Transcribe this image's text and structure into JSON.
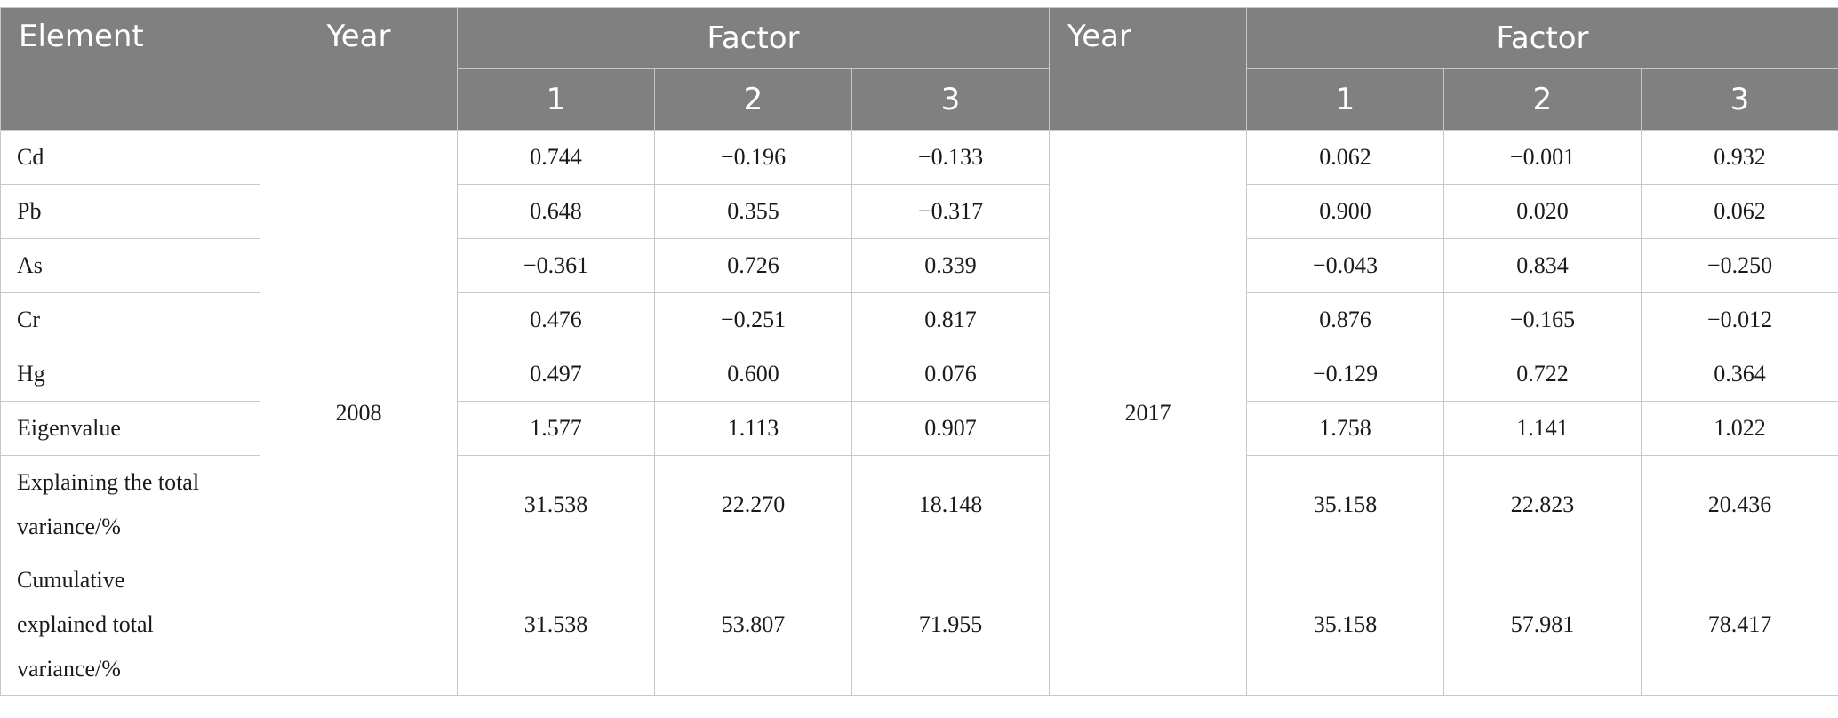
{
  "header": {
    "element": "Element",
    "year": "Year",
    "factor": "Factor",
    "factor_numbers": [
      "1",
      "2",
      "3"
    ]
  },
  "years": [
    "2008",
    "2017"
  ],
  "rows": [
    {
      "label": "Cd",
      "y2008": [
        "0.744",
        "−0.196",
        "−0.133"
      ],
      "y2017": [
        "0.062",
        "−0.001",
        "0.932"
      ]
    },
    {
      "label": "Pb",
      "y2008": [
        "0.648",
        "0.355",
        "−0.317"
      ],
      "y2017": [
        "0.900",
        "0.020",
        "0.062"
      ]
    },
    {
      "label": "As",
      "y2008": [
        "−0.361",
        "0.726",
        "0.339"
      ],
      "y2017": [
        "−0.043",
        "0.834",
        "−0.250"
      ]
    },
    {
      "label": "Cr",
      "y2008": [
        "0.476",
        "−0.251",
        "0.817"
      ],
      "y2017": [
        "0.876",
        "−0.165",
        "−0.012"
      ]
    },
    {
      "label": "Hg",
      "y2008": [
        "0.497",
        "0.600",
        "0.076"
      ],
      "y2017": [
        "−0.129",
        "0.722",
        "0.364"
      ]
    },
    {
      "label": "Eigenvalue",
      "y2008": [
        "1.577",
        "1.113",
        "0.907"
      ],
      "y2017": [
        "1.758",
        "1.141",
        "1.022"
      ]
    },
    {
      "label_lines": [
        "Explaining the total",
        "variance/%"
      ],
      "y2008": [
        "31.538",
        "22.270",
        "18.148"
      ],
      "y2017": [
        "35.158",
        "22.823",
        "20.436"
      ]
    },
    {
      "label_lines": [
        "Cumulative",
        "explained total",
        "variance/%"
      ],
      "y2008": [
        "31.538",
        "53.807",
        "71.955"
      ],
      "y2017": [
        "35.158",
        "57.981",
        "78.417"
      ]
    }
  ]
}
